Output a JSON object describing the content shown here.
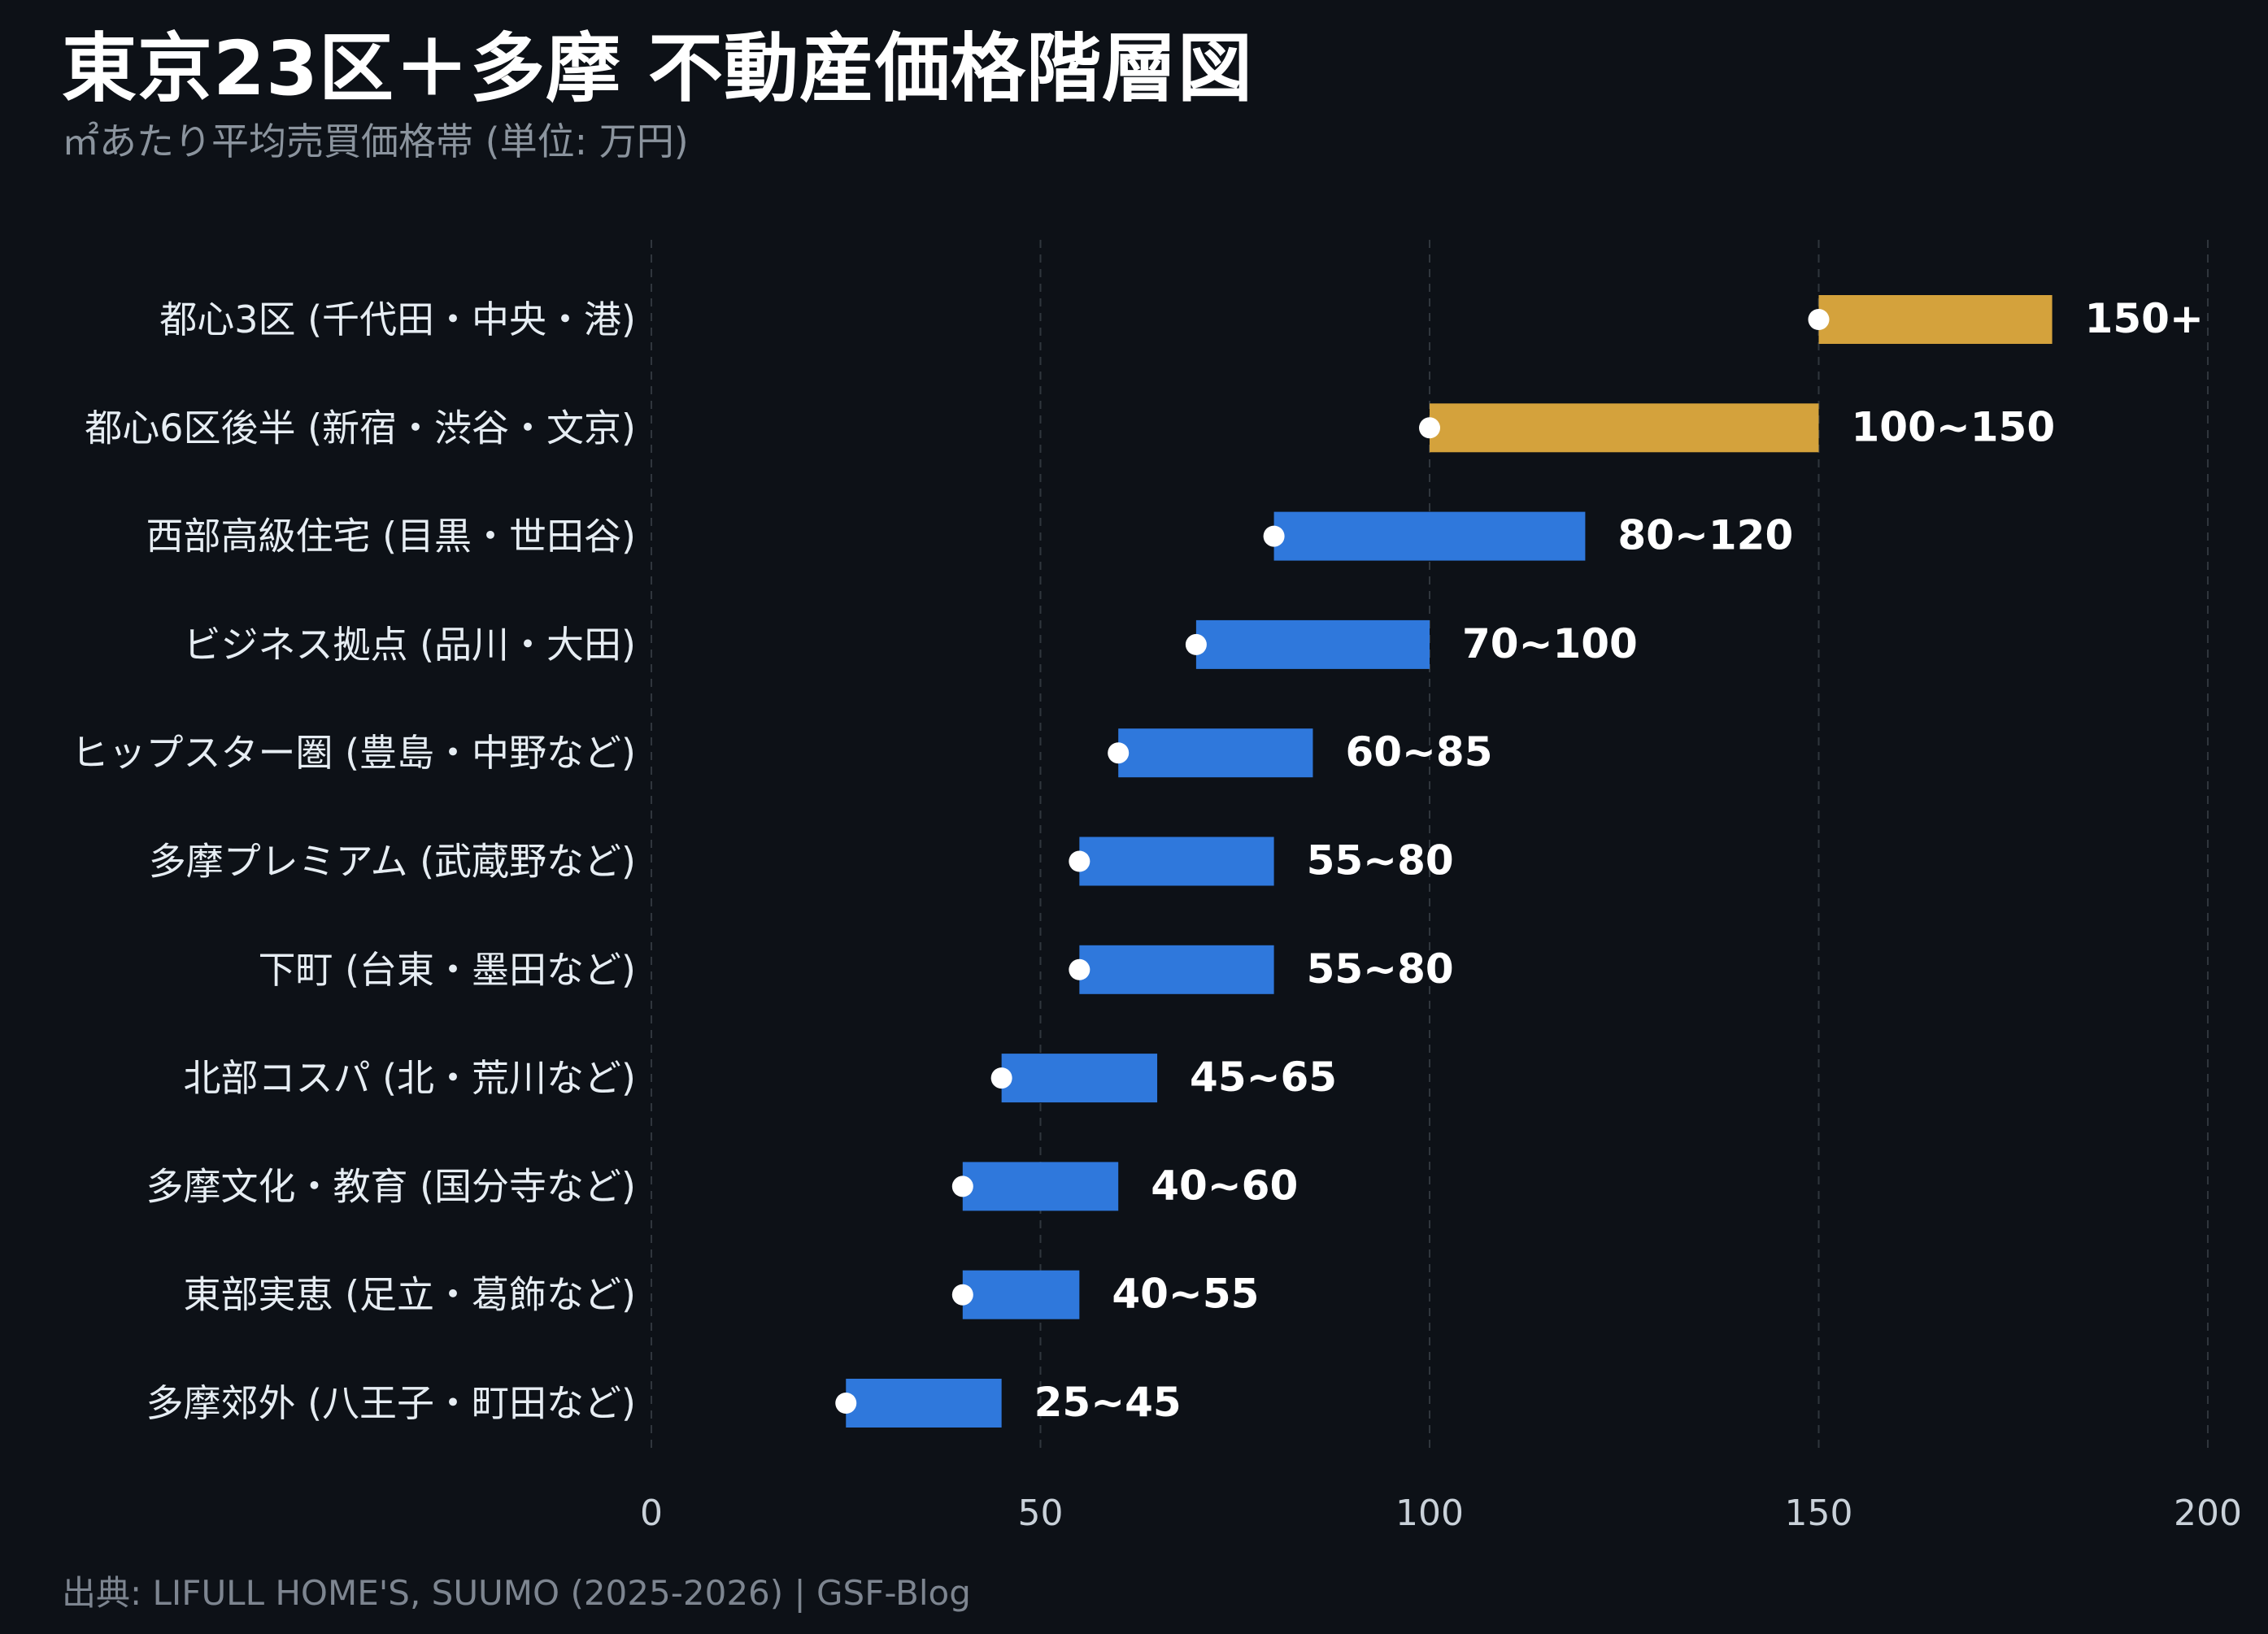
{
  "title": "東京23区＋多摩 不動産価格階層図",
  "subtitle": "㎡あたり平均売買価格帯 (単位: 万円)",
  "source": "出典: LIFULL HOME'S, SUUMO (2025-2026) | GSF-Blog",
  "colors": {
    "background": "#0d1117",
    "premium": "#d4a23c",
    "standard": "#2f78dc",
    "marker": "#ffffff",
    "grid": "#30363d",
    "tick": "#c9d1d9",
    "category": "#e6edf3",
    "label": "#ffffff"
  },
  "chart_data": {
    "type": "bar",
    "orientation": "horizontal-range",
    "xlim": [
      0,
      200
    ],
    "xticks": [
      0,
      50,
      100,
      150,
      200
    ],
    "grid": "vertical-dashed",
    "categories": [
      "都心3区 (千代田・中央・港)",
      "都心6区後半 (新宿・渋谷・文京)",
      "西部高級住宅 (目黒・世田谷)",
      "ビジネス拠点 (品川・大田)",
      "ヒップスター圏 (豊島・中野など)",
      "多摩プレミアム (武蔵野など)",
      "下町 (台東・墨田など)",
      "北部コスパ (北・荒川など)",
      "多摩文化・教育 (国分寺など)",
      "東部実恵 (足立・葛飾など)",
      "多摩郊外 (八王子・町田など)"
    ],
    "ranges": [
      {
        "low": 150,
        "high": 180,
        "label": "150+",
        "tier": "premium"
      },
      {
        "low": 100,
        "high": 150,
        "label": "100~150",
        "tier": "premium"
      },
      {
        "low": 80,
        "high": 120,
        "label": "80~120",
        "tier": "standard"
      },
      {
        "low": 70,
        "high": 100,
        "label": "70~100",
        "tier": "standard"
      },
      {
        "low": 60,
        "high": 85,
        "label": "60~85",
        "tier": "standard"
      },
      {
        "low": 55,
        "high": 80,
        "label": "55~80",
        "tier": "standard"
      },
      {
        "low": 55,
        "high": 80,
        "label": "55~80",
        "tier": "standard"
      },
      {
        "low": 45,
        "high": 65,
        "label": "45~65",
        "tier": "standard"
      },
      {
        "low": 40,
        "high": 60,
        "label": "40~60",
        "tier": "standard"
      },
      {
        "low": 40,
        "high": 55,
        "label": "40~55",
        "tier": "standard"
      },
      {
        "low": 25,
        "high": 45,
        "label": "25~45",
        "tier": "standard"
      }
    ]
  }
}
